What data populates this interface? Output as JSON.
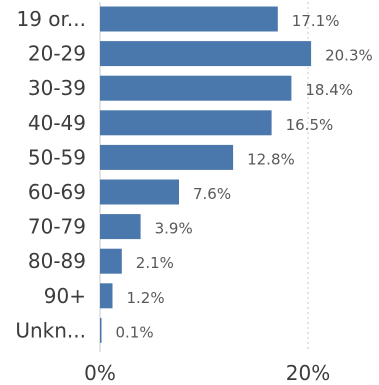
{
  "chart_data": {
    "type": "bar",
    "orientation": "horizontal",
    "categories": [
      "19 or...",
      "20-29",
      "30-39",
      "40-49",
      "50-59",
      "60-69",
      "70-79",
      "80-89",
      "90+",
      "Unkn..."
    ],
    "values": [
      17.1,
      20.3,
      18.4,
      16.5,
      12.8,
      7.6,
      3.9,
      2.1,
      1.2,
      0.1
    ],
    "value_labels": [
      "17.1%",
      "20.3%",
      "18.4%",
      "16.5%",
      "12.8%",
      "7.6%",
      "3.9%",
      "2.1%",
      "1.2%",
      "0.1%"
    ],
    "x_ticks": [
      0,
      20
    ],
    "x_tick_labels": [
      "0%",
      "20%"
    ],
    "xlim": [
      0,
      25
    ],
    "grid": "vertical-dashed",
    "bar_color": "#4a78ad",
    "legend": "none"
  }
}
